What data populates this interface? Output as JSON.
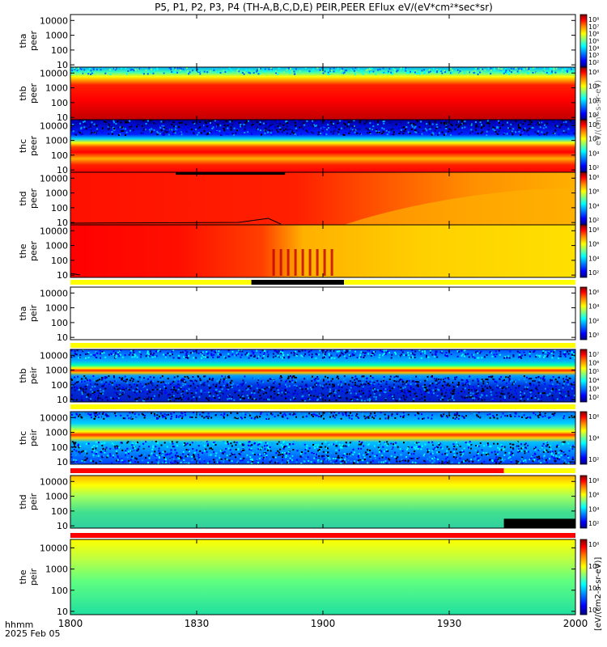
{
  "title": "P5, P1, P2, P3, P4 (TH-A,B,C,D,E) PEIR,PEER EFlux eV/(eV*cm²*sec*sr)",
  "time_axis": {
    "ticks": [
      "1800",
      "1830",
      "1900",
      "1930",
      "2000"
    ],
    "corner_line1": "hhmm",
    "corner_line2": "2025 Feb 05"
  },
  "colorbar_label": "[eV/(cm2-s-sr-eV)]",
  "colorbar_label_faint": "eV/(cm²-s-sr-eV)",
  "colors": {
    "jet": [
      "#000080",
      "#0000ff",
      "#00a0ff",
      "#00ffff",
      "#80ff80",
      "#ffff00",
      "#ff8000",
      "#ff0000",
      "#800000"
    ],
    "flag_yellow": "#ffff00",
    "flag_red": "#ff0000",
    "flag_black": "#000000"
  },
  "chart_data": [
    {
      "panel": "tha peer",
      "type": "heatmap",
      "ylabel": [
        "tha",
        "peer"
      ],
      "yticks": [
        "10000",
        "1000",
        "100",
        "10"
      ],
      "yscale": "log",
      "ylim_eV": [
        7,
        25000
      ],
      "xlim": [
        "1800",
        "2000"
      ],
      "cb_ticks": [
        "10⁸",
        "10⁷",
        "10⁶",
        "10⁵",
        "10⁴",
        "10³",
        "10²"
      ],
      "data": "none",
      "flags": []
    },
    {
      "panel": "thb peer",
      "type": "heatmap",
      "ylabel": [
        "thb",
        "peer"
      ],
      "yticks": [
        "10000",
        "1000",
        "100",
        "10"
      ],
      "yscale": "log",
      "ylim_eV": [
        7,
        25000
      ],
      "xlim": [
        "1800",
        "2000"
      ],
      "cb_ticks": [
        "10⁸",
        "10⁶",
        "10⁴",
        "10²"
      ],
      "data": "present",
      "flags": []
    },
    {
      "panel": "thc peer",
      "type": "heatmap",
      "ylabel": [
        "thc",
        "peer"
      ],
      "yticks": [
        "10000",
        "1000",
        "100",
        "10"
      ],
      "yscale": "log",
      "ylim_eV": [
        7,
        25000
      ],
      "xlim": [
        "1800",
        "2000"
      ],
      "cb_ticks": [
        "10⁸",
        "10⁶",
        "10⁴",
        "10²"
      ],
      "data": "present",
      "flags": []
    },
    {
      "panel": "thd peer",
      "type": "heatmap",
      "ylabel": [
        "thd",
        "peer"
      ],
      "yticks": [
        "10000",
        "1000",
        "100",
        "10"
      ],
      "yscale": "log",
      "ylim_eV": [
        7,
        25000
      ],
      "xlim": [
        "1800",
        "2000"
      ],
      "cb_ticks": [
        "10⁸",
        "10⁶",
        "10⁴",
        "10²"
      ],
      "data": "present",
      "flags": []
    },
    {
      "panel": "the peer",
      "type": "heatmap",
      "ylabel": [
        "the",
        "peer"
      ],
      "yticks": [
        "10000",
        "1000",
        "100",
        "10"
      ],
      "yscale": "log",
      "ylim_eV": [
        7,
        25000
      ],
      "xlim": [
        "1800",
        "2000"
      ],
      "cb_ticks": [
        "10⁸",
        "10⁶",
        "10⁴",
        "10²"
      ],
      "data": "present",
      "flags": []
    },
    {
      "panel": "tha peir",
      "type": "heatmap",
      "ylabel": [
        "tha",
        "peir"
      ],
      "yticks": [
        "10000",
        "1000",
        "100",
        "10"
      ],
      "yscale": "log",
      "ylim_eV": [
        7,
        25000
      ],
      "xlim": [
        "1800",
        "2000"
      ],
      "cb_ticks": [
        "10⁶",
        "10⁴",
        "10²",
        "10⁰"
      ],
      "data": "none",
      "flags": [
        {
          "color": "yellow"
        },
        {
          "color": "black",
          "from": "1843",
          "to": "1905"
        }
      ]
    },
    {
      "panel": "thb peir",
      "type": "heatmap",
      "ylabel": [
        "thb",
        "peir"
      ],
      "yticks": [
        "10000",
        "1000",
        "100",
        "10"
      ],
      "yscale": "log",
      "ylim_eV": [
        7,
        25000
      ],
      "xlim": [
        "1800",
        "2000"
      ],
      "cb_ticks": [
        "10⁷",
        "10⁶",
        "10⁵",
        "10⁴",
        "10³",
        "10²"
      ],
      "data": "present",
      "flags": [
        {
          "color": "yellow"
        }
      ]
    },
    {
      "panel": "thc peir",
      "type": "heatmap",
      "ylabel": [
        "thc",
        "peir"
      ],
      "yticks": [
        "10000",
        "1000",
        "100",
        "10"
      ],
      "yscale": "log",
      "ylim_eV": [
        7,
        25000
      ],
      "xlim": [
        "1800",
        "2000"
      ],
      "cb_ticks": [
        "10⁶",
        "10⁴",
        "10²"
      ],
      "data": "present",
      "flags": [
        {
          "color": "yellow"
        }
      ]
    },
    {
      "panel": "thd peir",
      "type": "heatmap",
      "ylabel": [
        "thd",
        "peir"
      ],
      "yticks": [
        "10000",
        "1000",
        "100",
        "10"
      ],
      "yscale": "log",
      "ylim_eV": [
        7,
        25000
      ],
      "xlim": [
        "1800",
        "2000"
      ],
      "cb_ticks": [
        "10⁸",
        "10⁶",
        "10⁴",
        "10²"
      ],
      "data": "present",
      "flags": [
        {
          "color": "red",
          "from": "1800",
          "to": "1943"
        },
        {
          "color": "yellow",
          "from": "1943",
          "to": "2000"
        }
      ]
    },
    {
      "panel": "the peir",
      "type": "heatmap",
      "ylabel": [
        "the",
        "peir"
      ],
      "yticks": [
        "10000",
        "1000",
        "100",
        "10"
      ],
      "yscale": "log",
      "ylim_eV": [
        7,
        25000
      ],
      "xlim": [
        "1800",
        "2000"
      ],
      "cb_ticks": [
        "10⁸",
        "10⁶",
        "10⁴",
        "10²"
      ],
      "data": "present",
      "flags": [
        {
          "color": "red"
        }
      ]
    }
  ]
}
